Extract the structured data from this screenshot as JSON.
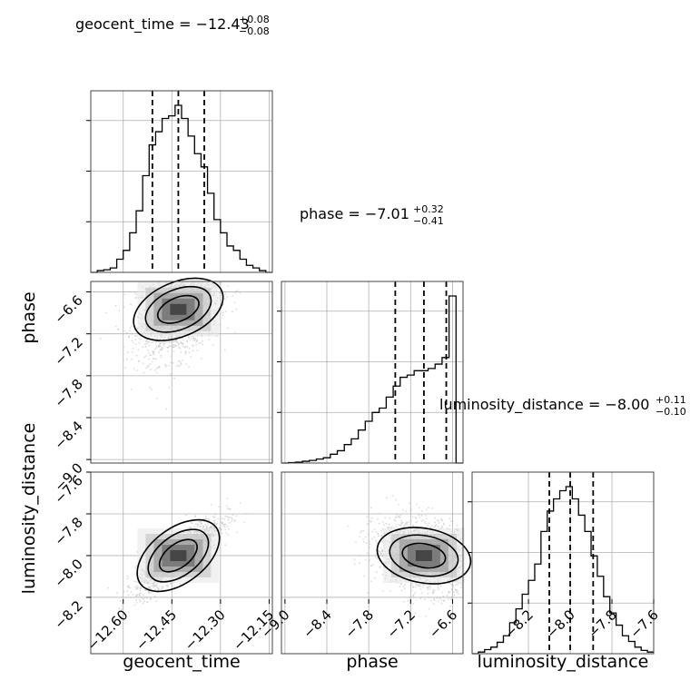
{
  "chart_data": {
    "type": "corner",
    "parameters": [
      "geocent_time",
      "phase",
      "luminosity_distance"
    ],
    "colors": {
      "line": "#000000",
      "grid": "#b0b0b0",
      "points": "#bdbdbd"
    },
    "titles": [
      {
        "name": "geocent_time",
        "prefix": "geocent_time = ",
        "median": "−12.43",
        "plus": "+0.08",
        "minus": "−0.08"
      },
      {
        "name": "phase",
        "prefix": "phase = ",
        "median": "−7.01",
        "plus": "+0.32",
        "minus": "−0.41"
      },
      {
        "name": "luminosity_distance",
        "prefix": "luminosity_distance = ",
        "median": "−8.00",
        "plus": "+0.11",
        "minus": "−0.10"
      }
    ],
    "axis_labels": [
      "geocent_time",
      "phase",
      "luminosity_distance"
    ],
    "ranges": [
      [
        -12.7,
        -12.14
      ],
      [
        -9.05,
        -6.45
      ],
      [
        -8.47,
        -7.6
      ]
    ],
    "ticks": [
      {
        "values": [
          -12.6,
          -12.45,
          -12.3,
          -12.15
        ],
        "labels": [
          "−12.60",
          "−12.45",
          "−12.30",
          "−12.15"
        ]
      },
      {
        "values": [
          -9.0,
          -8.4,
          -7.8,
          -7.2,
          -6.6
        ],
        "labels": [
          "−9.0",
          "−8.4",
          "−7.8",
          "−7.2",
          "−6.6"
        ]
      },
      {
        "values": [
          -8.2,
          -8.0,
          -7.8,
          -7.6
        ],
        "labels": [
          "−8.2",
          "−8.0",
          "−7.8",
          "−7.6"
        ]
      }
    ],
    "quantiles": [
      [
        -12.51,
        -12.43,
        -12.35
      ],
      [
        -7.42,
        -7.01,
        -6.69
      ],
      [
        -8.1,
        -8.0,
        -7.89
      ]
    ],
    "histograms": [
      {
        "parameter": "geocent_time",
        "bin_edges": [
          -12.7,
          -12.68,
          -12.66,
          -12.64,
          -12.62,
          -12.6,
          -12.58,
          -12.56,
          -12.54,
          -12.52,
          -12.5,
          -12.48,
          -12.46,
          -12.44,
          -12.42,
          -12.4,
          -12.38,
          -12.36,
          -12.34,
          -12.32,
          -12.3,
          -12.28,
          -12.26,
          -12.24,
          -12.22,
          -12.2,
          -12.18,
          -12.16,
          -12.14
        ],
        "counts": [
          0,
          2,
          3,
          5,
          15,
          25,
          45,
          70,
          110,
          145,
          160,
          175,
          178,
          190,
          175,
          155,
          135,
          120,
          90,
          60,
          45,
          30,
          25,
          15,
          8,
          5,
          2,
          0
        ]
      },
      {
        "parameter": "phase",
        "bin_edges": [
          -9.05,
          -8.95,
          -8.85,
          -8.75,
          -8.65,
          -8.55,
          -8.45,
          -8.35,
          -8.25,
          -8.15,
          -8.05,
          -7.95,
          -7.85,
          -7.75,
          -7.65,
          -7.55,
          -7.45,
          -7.35,
          -7.25,
          -7.15,
          -7.05,
          -6.95,
          -6.85,
          -6.75,
          -6.65,
          -6.55,
          -6.45
        ],
        "counts": [
          0,
          1,
          2,
          4,
          6,
          9,
          12,
          20,
          28,
          42,
          55,
          75,
          95,
          115,
          125,
          150,
          175,
          195,
          200,
          210,
          210,
          215,
          225,
          240,
          380,
          0
        ]
      },
      {
        "parameter": "luminosity_distance",
        "bin_edges": [
          -8.47,
          -8.44,
          -8.41,
          -8.38,
          -8.35,
          -8.32,
          -8.29,
          -8.26,
          -8.23,
          -8.2,
          -8.17,
          -8.14,
          -8.11,
          -8.08,
          -8.05,
          -8.02,
          -7.99,
          -7.96,
          -7.93,
          -7.9,
          -7.87,
          -7.84,
          -7.81,
          -7.78,
          -7.75,
          -7.72,
          -7.69,
          -7.66,
          -7.63,
          -7.6
        ],
        "counts": [
          0,
          2,
          5,
          8,
          14,
          22,
          38,
          55,
          73,
          90,
          110,
          150,
          175,
          190,
          200,
          205,
          190,
          170,
          150,
          120,
          95,
          70,
          50,
          35,
          22,
          15,
          8,
          4,
          2
        ]
      }
    ],
    "scatter_2d": [
      {
        "x": "geocent_time",
        "y": "phase",
        "center": [
          -12.43,
          -6.85
        ],
        "spread": [
          0.08,
          0.45
        ],
        "correlation": 0.35
      },
      {
        "x": "geocent_time",
        "y": "luminosity_distance",
        "center": [
          -12.43,
          -8.0
        ],
        "spread": [
          0.08,
          0.11
        ],
        "correlation": 0.85
      },
      {
        "x": "phase",
        "y": "luminosity_distance",
        "center": [
          -7.01,
          -8.0
        ],
        "spread": [
          0.45,
          0.11
        ],
        "correlation": -0.25
      }
    ],
    "grid": true
  }
}
